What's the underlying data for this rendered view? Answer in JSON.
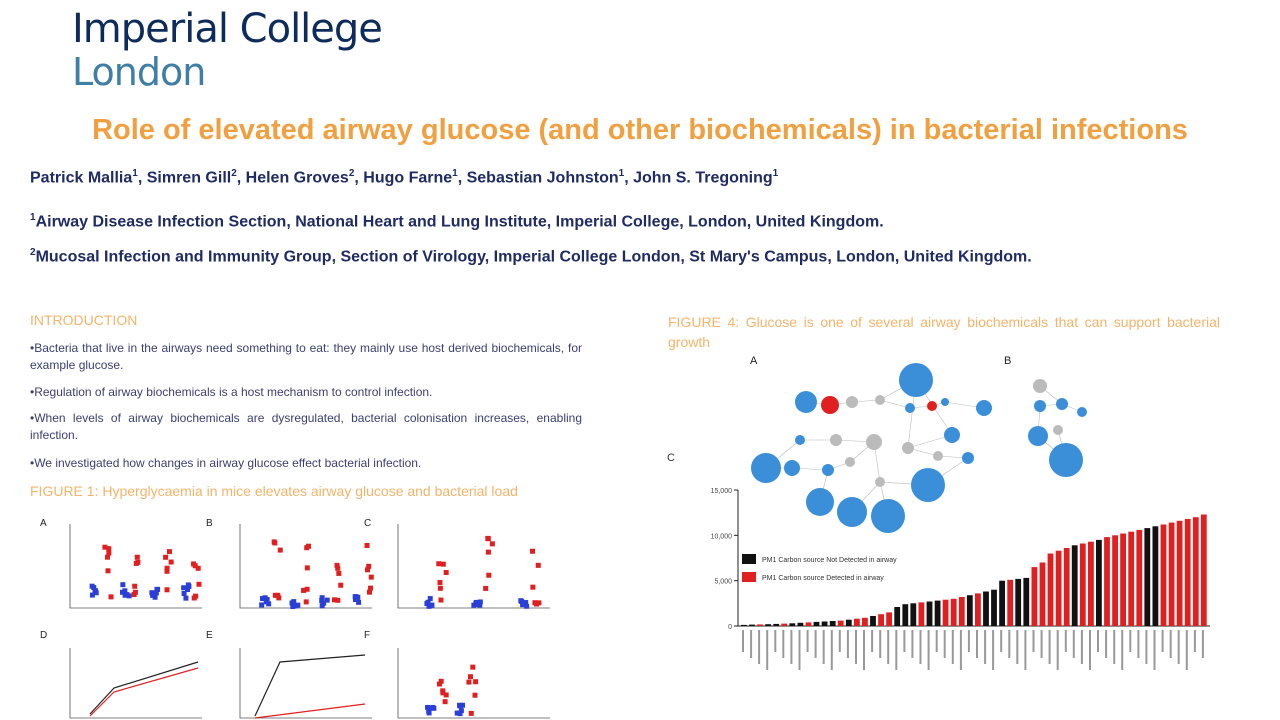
{
  "logo": {
    "line1": "Imperial College",
    "line2": "London"
  },
  "title": "Role of elevated airway glucose (and other biochemicals) in bacterial infections",
  "authors": [
    {
      "name": "Patrick Mallia",
      "sup": "1"
    },
    {
      "name": "Simren Gill",
      "sup": "2"
    },
    {
      "name": "Helen Groves",
      "sup": "2"
    },
    {
      "name": "Hugo Farne",
      "sup": "1"
    },
    {
      "name": "Sebastian Johnston",
      "sup": "1"
    },
    {
      "name": "John S. Tregoning",
      "sup": "1"
    }
  ],
  "affiliations": [
    {
      "sup": "1",
      "text": "Airway Disease Infection Section, National Heart and Lung Institute, Imperial College, London, United Kingdom."
    },
    {
      "sup": "2",
      "text": "Mucosal Infection and Immunity Group, Section of Virology, Imperial College London, St Mary's Campus, London, United Kingdom."
    }
  ],
  "introduction": {
    "heading": "INTRODUCTION",
    "bullets": [
      "•Bacteria that live in the airways need something to eat: they mainly use host derived biochemicals, for example glucose.",
      "•Regulation of airway biochemicals is a host mechanism to control infection.",
      "•When levels of airway biochemicals are dysregulated, bacterial colonisation increases, enabling infection.",
      "•We investigated how changes in airway glucose effect bacterial infection."
    ]
  },
  "figure1": {
    "caption": "FIGURE 1: Hyperglycaemia in mice elevates airway glucose and bacterial load",
    "panels": [
      "A",
      "B",
      "C",
      "D",
      "E",
      "F"
    ]
  },
  "figure4": {
    "caption": "FIGURE 4: Glucose is one of several airway biochemicals that can support bacterial growth",
    "panels": [
      "A",
      "B",
      "C"
    ],
    "legend": [
      {
        "label": "PM1 Carbon source Not Detected in airway",
        "color": "#111111"
      },
      {
        "label": "PM1 Carbon source Detected in airway",
        "color": "#e02020"
      }
    ]
  },
  "chart_data": {
    "type": "bar",
    "ylim": [
      0,
      15000
    ],
    "yticks": [
      "15,000",
      "10,000",
      "5,000",
      "0"
    ],
    "values": [
      120,
      150,
      180,
      200,
      230,
      260,
      300,
      350,
      400,
      450,
      500,
      550,
      600,
      700,
      800,
      900,
      1100,
      1300,
      1500,
      2100,
      2400,
      2500,
      2600,
      2700,
      2800,
      2900,
      3000,
      3200,
      3400,
      3600,
      3800,
      4000,
      5000,
      5100,
      5200,
      5300,
      6500,
      7000,
      8000,
      8300,
      8600,
      8900,
      9100,
      9300,
      9500,
      9800,
      10000,
      10200,
      10400,
      10600,
      10800,
      11000,
      11200,
      11400,
      11600,
      11800,
      12000,
      12300
    ],
    "detected": [
      0,
      0,
      1,
      0,
      0,
      1,
      0,
      0,
      1,
      0,
      0,
      0,
      1,
      0,
      1,
      1,
      0,
      1,
      1,
      0,
      0,
      0,
      1,
      0,
      0,
      1,
      1,
      1,
      0,
      1,
      0,
      0,
      0,
      1,
      0,
      0,
      1,
      1,
      1,
      1,
      1,
      0,
      1,
      1,
      0,
      1,
      1,
      1,
      1,
      1,
      0,
      0,
      1,
      1,
      1,
      1,
      1,
      1
    ]
  }
}
